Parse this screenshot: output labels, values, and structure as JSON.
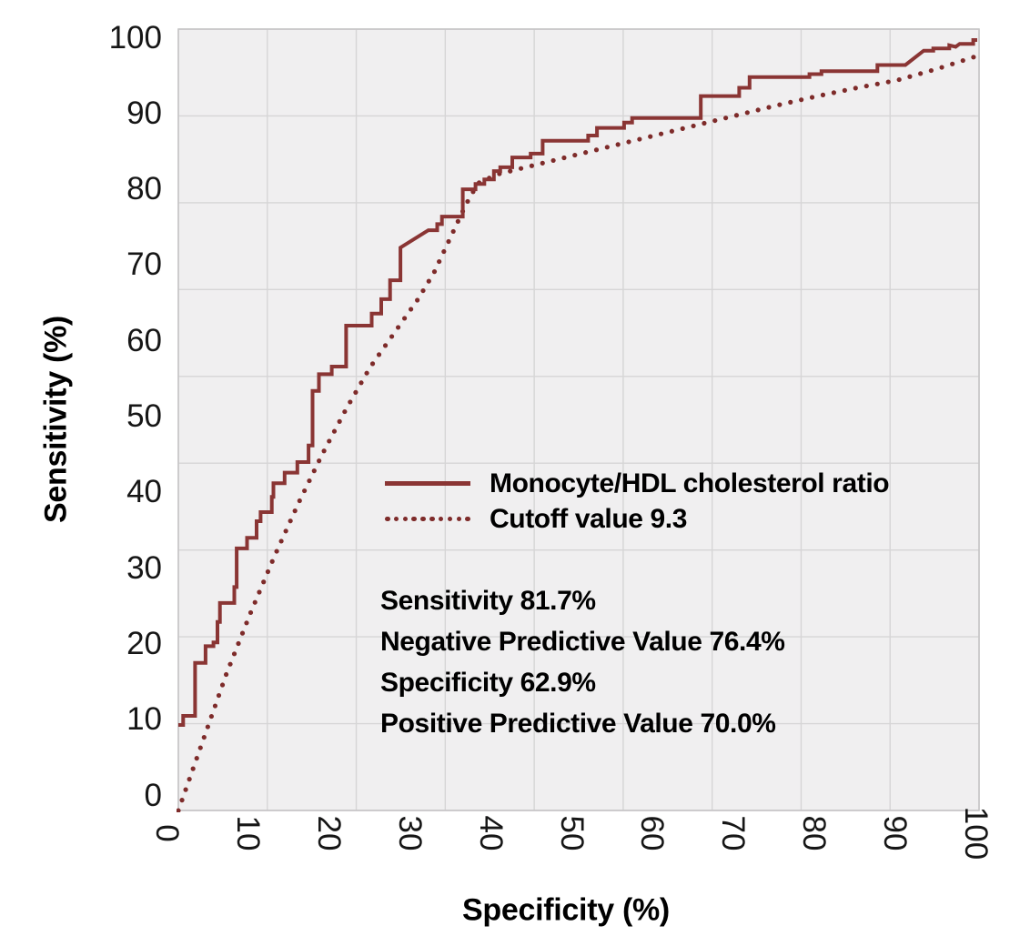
{
  "chart_data": {
    "type": "line",
    "title": "",
    "xlabel": "Specificity (%)",
    "ylabel": "Sensitivity (%)",
    "xlim": [
      0,
      100
    ],
    "ylim": [
      0,
      100
    ],
    "x_ticks": [
      0,
      10,
      20,
      30,
      40,
      50,
      60,
      70,
      80,
      90,
      100
    ],
    "y_ticks": [
      0,
      10,
      20,
      30,
      40,
      50,
      60,
      70,
      80,
      90,
      100
    ],
    "grid": true,
    "legend_position": "inside-center-left",
    "series": [
      {
        "name": "Monocyte/HDL cholesterol ratio",
        "style": "solid-step",
        "color": "#8a3534",
        "points": [
          [
            0,
            9.3
          ],
          [
            0.6,
            9.3
          ],
          [
            0.6,
            10.5
          ],
          [
            2.1,
            10.5
          ],
          [
            2.1,
            17.5
          ],
          [
            3.4,
            17.5
          ],
          [
            3.4,
            19.7
          ],
          [
            4.4,
            19.7
          ],
          [
            4.4,
            20.2
          ],
          [
            4.9,
            20.2
          ],
          [
            4.9,
            22.9
          ],
          [
            5.2,
            22.9
          ],
          [
            5.2,
            25.4
          ],
          [
            7.0,
            25.4
          ],
          [
            7.0,
            27.5
          ],
          [
            7.3,
            27.5
          ],
          [
            7.3,
            32.6
          ],
          [
            8.6,
            32.6
          ],
          [
            8.6,
            34.0
          ],
          [
            9.8,
            34.0
          ],
          [
            9.8,
            36.2
          ],
          [
            10.3,
            36.2
          ],
          [
            10.3,
            37.4
          ],
          [
            11.7,
            37.4
          ],
          [
            11.7,
            39.4
          ],
          [
            11.9,
            39.4
          ],
          [
            11.9,
            41.2
          ],
          [
            13.3,
            41.2
          ],
          [
            13.3,
            42.6
          ],
          [
            14.9,
            42.6
          ],
          [
            14.9,
            44.0
          ],
          [
            16.3,
            44.0
          ],
          [
            16.3,
            46.2
          ],
          [
            16.8,
            46.2
          ],
          [
            16.8,
            53.4
          ],
          [
            17.6,
            53.4
          ],
          [
            17.6,
            55.6
          ],
          [
            19.2,
            55.6
          ],
          [
            19.2,
            56.6
          ],
          [
            21.0,
            56.6
          ],
          [
            21.0,
            62.0
          ],
          [
            24.2,
            62.0
          ],
          [
            24.2,
            63.6
          ],
          [
            25.4,
            63.6
          ],
          [
            25.4,
            65.5
          ],
          [
            26.5,
            65.5
          ],
          [
            26.5,
            68.0
          ],
          [
            27.8,
            68.0
          ],
          [
            27.8,
            72.3
          ],
          [
            31.3,
            74.6
          ],
          [
            32.4,
            74.6
          ],
          [
            32.4,
            75.4
          ],
          [
            33.0,
            75.4
          ],
          [
            33.0,
            76.4
          ],
          [
            35.6,
            76.4
          ],
          [
            35.6,
            80.0
          ],
          [
            37.2,
            80.0
          ],
          [
            37.2,
            80.7
          ],
          [
            38.3,
            80.7
          ],
          [
            38.3,
            81.3
          ],
          [
            39.5,
            81.3
          ],
          [
            39.5,
            82.4
          ],
          [
            40.3,
            82.4
          ],
          [
            40.3,
            82.9
          ],
          [
            41.8,
            82.9
          ],
          [
            41.8,
            84.2
          ],
          [
            44.1,
            84.2
          ],
          [
            44.1,
            84.7
          ],
          [
            45.6,
            84.7
          ],
          [
            45.6,
            86.4
          ],
          [
            51.3,
            86.4
          ],
          [
            51.3,
            87.1
          ],
          [
            52.4,
            87.1
          ],
          [
            52.4,
            88.1
          ],
          [
            55.8,
            88.1
          ],
          [
            55.8,
            88.8
          ],
          [
            56.8,
            88.8
          ],
          [
            56.8,
            89.4
          ],
          [
            65.4,
            89.4
          ],
          [
            65.4,
            92.3
          ],
          [
            70.2,
            92.3
          ],
          [
            70.2,
            93.4
          ],
          [
            71.5,
            93.4
          ],
          [
            71.5,
            94.8
          ],
          [
            79.0,
            94.8
          ],
          [
            79.0,
            95.2
          ],
          [
            80.5,
            95.2
          ],
          [
            80.5,
            95.6
          ],
          [
            87.5,
            95.6
          ],
          [
            87.5,
            96.4
          ],
          [
            91.0,
            96.4
          ],
          [
            93.3,
            98.3
          ],
          [
            94.5,
            98.3
          ],
          [
            94.5,
            98.6
          ],
          [
            96.5,
            98.6
          ],
          [
            96.5,
            99.0
          ],
          [
            97.3,
            98.8
          ],
          [
            97.8,
            99.2
          ],
          [
            99.5,
            99.2
          ],
          [
            99.5,
            99.7
          ],
          [
            100,
            99.7
          ]
        ]
      },
      {
        "name": "Cutoff value 9.3",
        "style": "dotted",
        "color": "#7e2b2a",
        "points": [
          [
            0,
            -2
          ],
          [
            3,
            7
          ],
          [
            6,
            16
          ],
          [
            9,
            24
          ],
          [
            12,
            31.5
          ],
          [
            15,
            38.5
          ],
          [
            18,
            45
          ],
          [
            21,
            51
          ],
          [
            24,
            56.5
          ],
          [
            27,
            61
          ],
          [
            30,
            65.5
          ],
          [
            32,
            69
          ],
          [
            34,
            73.5
          ],
          [
            36,
            78
          ],
          [
            37.5,
            80.8
          ],
          [
            40,
            82
          ],
          [
            45,
            83.3
          ],
          [
            50,
            84.6
          ],
          [
            55,
            85.9
          ],
          [
            60,
            87.2
          ],
          [
            65,
            88.5
          ],
          [
            70,
            89.8
          ],
          [
            75,
            91.1
          ],
          [
            80,
            92.3
          ],
          [
            85,
            93.4
          ],
          [
            90,
            94.4
          ],
          [
            95,
            95.9
          ],
          [
            100,
            97.6
          ]
        ]
      }
    ],
    "annotations": [
      "Sensitivity 81.7%",
      "Negative Predictive Value 76.4%",
      "Specificity 62.9%",
      "Positive Predictive Value 70.0%"
    ]
  },
  "colors": {
    "curve": "#8a3534",
    "dots": "#7e2b2a",
    "plot_bg": "#f0eff0",
    "grid": "#d6d5d6",
    "plot_border": "#c6c5c6"
  }
}
